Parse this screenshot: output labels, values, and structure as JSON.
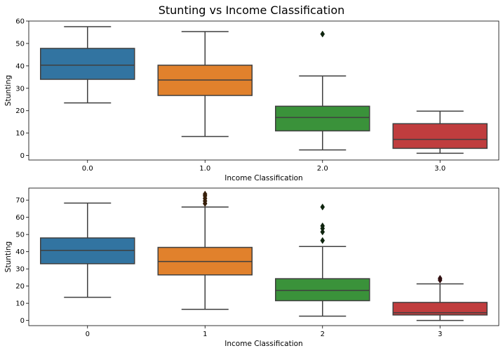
{
  "title": "Stunting vs Income Classification",
  "chart_data": [
    {
      "type": "box",
      "xlabel": "Income Classification",
      "ylabel": "Stunting",
      "ylim": [
        -2,
        60
      ],
      "yticks": [
        0,
        10,
        20,
        30,
        40,
        50,
        60
      ],
      "categories": [
        "0.0",
        "1.0",
        "2.0",
        "3.0"
      ],
      "boxes": [
        {
          "color": "#3274a1",
          "whisker_low": 23.5,
          "q1": 34,
          "median": 40.3,
          "q3": 47.8,
          "whisker_high": 57.5,
          "outliers": []
        },
        {
          "color": "#e1812c",
          "whisker_low": 8.5,
          "q1": 26.8,
          "median": 33.7,
          "q3": 40.3,
          "whisker_high": 55.3,
          "outliers": []
        },
        {
          "color": "#3a923a",
          "whisker_low": 2.5,
          "q1": 11,
          "median": 17,
          "q3": 22,
          "whisker_high": 35.5,
          "outliers": [
            54.2
          ]
        },
        {
          "color": "#c03d3e",
          "whisker_low": 1,
          "q1": 3.2,
          "median": 7.2,
          "q3": 14.2,
          "whisker_high": 19.8,
          "outliers": []
        }
      ]
    },
    {
      "type": "box",
      "xlabel": "Income Classification",
      "ylabel": "Stunting",
      "ylim": [
        -3,
        77
      ],
      "yticks": [
        0,
        10,
        20,
        30,
        40,
        50,
        60,
        70
      ],
      "categories": [
        "0",
        "1",
        "2",
        "3"
      ],
      "boxes": [
        {
          "color": "#3274a1",
          "whisker_low": 13.5,
          "q1": 33,
          "median": 40.8,
          "q3": 48,
          "whisker_high": 68.3,
          "outliers": []
        },
        {
          "color": "#e1812c",
          "whisker_low": 6.5,
          "q1": 26.5,
          "median": 34.3,
          "q3": 42.5,
          "whisker_high": 66,
          "outliers": [
            68,
            69.5,
            71,
            72.5,
            73.5
          ]
        },
        {
          "color": "#3a923a",
          "whisker_low": 2.5,
          "q1": 11.5,
          "median": 17.5,
          "q3": 24.3,
          "whisker_high": 43,
          "outliers": [
            46.5,
            51.5,
            53.5,
            55,
            66
          ]
        },
        {
          "color": "#c03d3e",
          "whisker_low": 0,
          "q1": 3.2,
          "median": 4.5,
          "q3": 10.5,
          "whisker_high": 21.3,
          "outliers": [
            23.5,
            24.5
          ]
        }
      ]
    }
  ]
}
